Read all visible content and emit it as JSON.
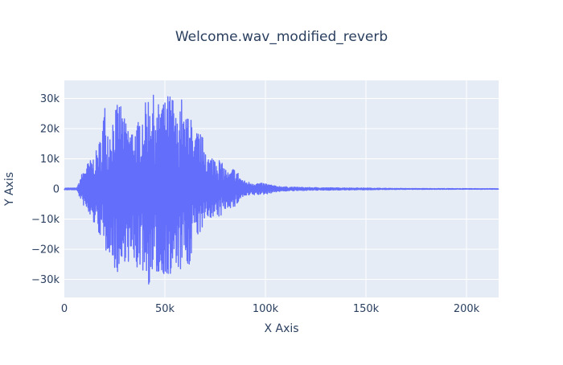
{
  "chart_data": {
    "type": "line",
    "title": "Welcome.wav_modified_reverb",
    "xlabel": "X Axis",
    "ylabel": "Y Axis",
    "xlim": [
      0,
      216000
    ],
    "ylim": [
      -36000,
      36000
    ],
    "x_ticks": [
      {
        "value": 0,
        "label": "0"
      },
      {
        "value": 50000,
        "label": "50k"
      },
      {
        "value": 100000,
        "label": "100k"
      },
      {
        "value": 150000,
        "label": "150k"
      },
      {
        "value": 200000,
        "label": "200k"
      }
    ],
    "y_ticks": [
      {
        "value": 30000,
        "label": "30k"
      },
      {
        "value": 20000,
        "label": "20k"
      },
      {
        "value": 10000,
        "label": "10k"
      },
      {
        "value": 0,
        "label": "0"
      },
      {
        "value": -10000,
        "label": "−10k"
      },
      {
        "value": -20000,
        "label": "−20k"
      },
      {
        "value": -30000,
        "label": "−30k"
      }
    ],
    "grid": true,
    "series": [
      {
        "name": "Welcome.wav_modified_reverb",
        "color": "#636efa",
        "envelope_x": [
          0,
          6000,
          7000,
          8000,
          10000,
          12000,
          15000,
          18000,
          20000,
          22000,
          25000,
          28000,
          30000,
          33000,
          36000,
          38000,
          40000,
          42000,
          44000,
          46000,
          48000,
          50000,
          52000,
          54000,
          56000,
          58000,
          60000,
          62000,
          63000,
          64000,
          66000,
          68000,
          70000,
          72000,
          75000,
          78000,
          80000,
          82000,
          84000,
          86000,
          88000,
          90000,
          95000,
          100000,
          105000,
          110000,
          120000,
          130000,
          140000,
          150000,
          160000,
          170000,
          216000
        ],
        "envelope_pos": [
          300,
          300,
          1500,
          4000,
          7000,
          9000,
          11000,
          17000,
          29000,
          19000,
          27000,
          29000,
          23000,
          20000,
          21000,
          25000,
          28000,
          32000,
          32000,
          26000,
          32000,
          29000,
          32000,
          31000,
          22000,
          32000,
          21000,
          31000,
          28000,
          12000,
          20000,
          18000,
          16000,
          10000,
          12000,
          9000,
          7000,
          5000,
          7000,
          6000,
          3500,
          2500,
          2000,
          1800,
          1000,
          700,
          500,
          400,
          350,
          300,
          200,
          150,
          100
        ],
        "envelope_neg": [
          -300,
          -300,
          -1500,
          -4000,
          -6000,
          -9000,
          -12000,
          -16000,
          -22000,
          -20000,
          -27000,
          -29000,
          -24000,
          -25000,
          -27000,
          -26000,
          -29000,
          -32000,
          -32000,
          -28000,
          -32000,
          -27000,
          -32000,
          -29000,
          -26000,
          -28000,
          -22000,
          -31000,
          -29000,
          -12000,
          -16000,
          -14000,
          -12000,
          -9000,
          -11000,
          -9000,
          -7000,
          -6000,
          -7000,
          -5000,
          -3000,
          -2500,
          -2000,
          -1800,
          -1000,
          -700,
          -500,
          -400,
          -350,
          -300,
          -200,
          -150,
          -100
        ]
      }
    ]
  }
}
